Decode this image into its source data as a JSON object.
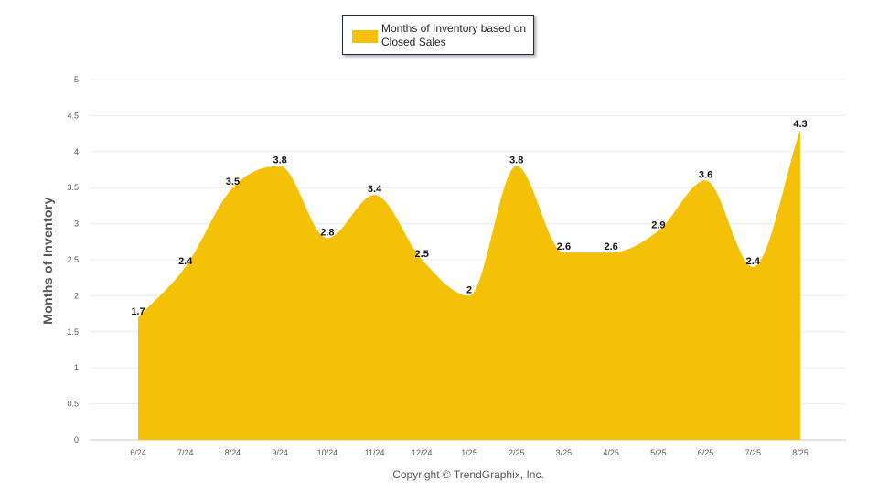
{
  "chart_data": {
    "type": "area",
    "categories": [
      "6/24",
      "7/24",
      "8/24",
      "9/24",
      "10/24",
      "11/24",
      "12/24",
      "1/25",
      "2/25",
      "3/25",
      "4/25",
      "5/25",
      "6/25",
      "7/25",
      "8/25"
    ],
    "series": [
      {
        "name": "Months of Inventory based on Closed Sales",
        "values": [
          1.7,
          2.4,
          3.5,
          3.8,
          2.8,
          3.4,
          2.5,
          2,
          3.8,
          2.6,
          2.6,
          2.9,
          3.6,
          2.4,
          4.3
        ],
        "color": "#f5c107"
      }
    ],
    "ylabel": "Months of Inventory",
    "ylim": [
      0,
      5
    ],
    "yticks": [
      "0",
      "0.5",
      "1",
      "1.5",
      "2",
      "2.5",
      "3",
      "3.5",
      "4",
      "4.5",
      "5"
    ],
    "grid": true,
    "legend_position": "top-center",
    "footer": "Copyright © TrendGraphix, Inc."
  }
}
